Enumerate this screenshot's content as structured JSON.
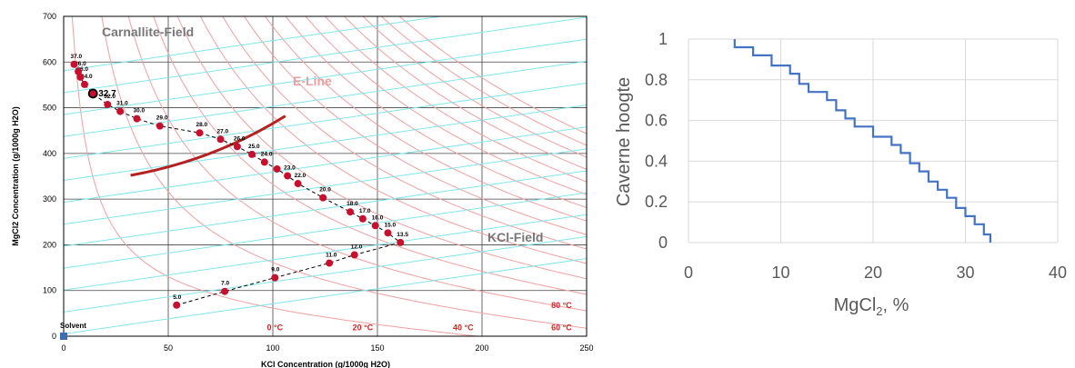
{
  "chart_data": [
    {
      "type": "scatter",
      "title": "",
      "xlabel": "KCl Concentration (g/1000g H2O)",
      "ylabel": "MgCl2 Concentration (g/1000g H2O)",
      "xlim": [
        0,
        250
      ],
      "ylim": [
        0,
        700
      ],
      "x_ticks": [
        "0",
        "50",
        "100",
        "150",
        "200",
        "250"
      ],
      "y_ticks": [
        "0",
        "100",
        "200",
        "300",
        "400",
        "500",
        "600",
        "700"
      ],
      "grid": true,
      "annotations": {
        "carnallite_field": "Carnallite-Field",
        "e_line": "E-Line",
        "kcl_field": "KCl-Field",
        "solvent": "Solvent",
        "highlight": "32.7"
      },
      "isotherm_labels": [
        {
          "label": "0 °C",
          "x": 101,
          "y": 13
        },
        {
          "label": "20 °C",
          "x": 143,
          "y": 13
        },
        {
          "label": "40 °C",
          "x": 191,
          "y": 13
        },
        {
          "label": "60 °C",
          "x": 238,
          "y": 13
        },
        {
          "label": "80 °C",
          "x": 238,
          "y": 62
        }
      ],
      "colors": {
        "isotherm": "#f0a0a0",
        "tie_line": "#7fe6ee",
        "point": "#c8102e",
        "e_line": "#b52020",
        "grid": "#444444"
      },
      "series": [
        {
          "name": "",
          "points": [
            {
              "label": "5.0",
              "x": 54,
              "y": 68
            },
            {
              "label": "7.0",
              "x": 77,
              "y": 98
            },
            {
              "label": "9.0",
              "x": 101,
              "y": 128
            },
            {
              "label": "11.0",
              "x": 127,
              "y": 160
            },
            {
              "label": "12.0",
              "x": 139,
              "y": 178
            },
            {
              "label": "13.5",
              "x": 161,
              "y": 205
            },
            {
              "label": "15.0",
              "x": 155,
              "y": 226
            },
            {
              "label": "16.0",
              "x": 149,
              "y": 242
            },
            {
              "label": "17.0",
              "x": 143,
              "y": 257
            },
            {
              "label": "18.0",
              "x": 137,
              "y": 272
            },
            {
              "label": "20.0",
              "x": 124,
              "y": 303
            },
            {
              "label": "22.0",
              "x": 112,
              "y": 334
            },
            {
              "label": "23.0",
              "x": 107,
              "y": 351
            },
            {
              "label": "",
              "x": 102,
              "y": 366
            },
            {
              "label": "24.0",
              "x": 96,
              "y": 381
            },
            {
              "label": "25.0",
              "x": 90,
              "y": 398
            },
            {
              "label": "26.0",
              "x": 83,
              "y": 415
            },
            {
              "label": "27.0",
              "x": 75,
              "y": 431
            },
            {
              "label": "28.0",
              "x": 65,
              "y": 445
            },
            {
              "label": "29.0",
              "x": 46,
              "y": 460
            },
            {
              "label": "30.0",
              "x": 35,
              "y": 476
            },
            {
              "label": "31.0",
              "x": 27,
              "y": 492
            },
            {
              "label": "32.0",
              "x": 21,
              "y": 507
            },
            {
              "label": "32.7",
              "x": 14,
              "y": 531
            },
            {
              "label": "34.0",
              "x": 10,
              "y": 551
            },
            {
              "label": "36.0",
              "x": 8,
              "y": 567
            },
            {
              "label": "36.0",
              "x": 7,
              "y": 579
            },
            {
              "label": "37.0",
              "x": 5,
              "y": 595
            }
          ]
        }
      ]
    },
    {
      "type": "line",
      "title": "",
      "xlabel": "MgCl",
      "xlabel_sub": "2",
      "xlabel_suffix": ", %",
      "ylabel": "Caverne hoogte",
      "xlim": [
        0,
        40
      ],
      "ylim": [
        0,
        1
      ],
      "x_ticks": [
        "0",
        "10",
        "20",
        "30",
        "40"
      ],
      "y_ticks": [
        "0",
        "0.2",
        "0.4",
        "0.6",
        "0.8",
        "1"
      ],
      "grid": true,
      "colors": {
        "line": "#4472c4",
        "grid": "#d9d9d9",
        "text": "#595959"
      },
      "series": [
        {
          "name": "",
          "x": [
            5,
            5,
            7,
            7,
            9,
            9,
            11,
            11,
            12,
            12,
            13,
            13,
            15,
            15,
            16,
            16,
            17,
            17,
            18,
            18,
            20,
            20,
            22,
            22,
            23,
            23,
            24,
            24,
            25,
            25,
            26,
            26,
            27,
            27,
            28,
            28,
            29,
            29,
            30,
            30,
            31,
            31,
            32,
            32,
            32.7,
            32.7
          ],
          "y": [
            1,
            0.96,
            0.96,
            0.92,
            0.92,
            0.87,
            0.87,
            0.83,
            0.83,
            0.78,
            0.78,
            0.74,
            0.74,
            0.7,
            0.7,
            0.65,
            0.65,
            0.61,
            0.61,
            0.57,
            0.57,
            0.52,
            0.52,
            0.48,
            0.48,
            0.44,
            0.44,
            0.39,
            0.39,
            0.35,
            0.35,
            0.3,
            0.3,
            0.26,
            0.26,
            0.22,
            0.22,
            0.17,
            0.17,
            0.13,
            0.13,
            0.09,
            0.09,
            0.04,
            0.04,
            0
          ]
        }
      ]
    }
  ]
}
